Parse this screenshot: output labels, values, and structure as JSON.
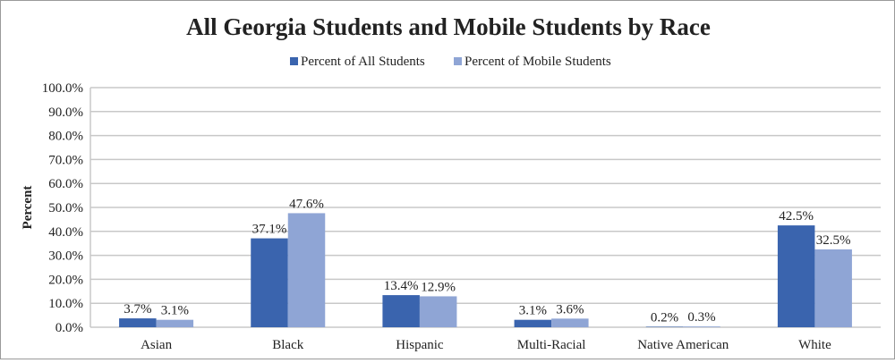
{
  "chart_data": {
    "type": "bar",
    "title": "All Georgia Students and Mobile Students by Race",
    "xlabel": "",
    "ylabel": "Percent",
    "ylim": [
      0,
      100
    ],
    "yticks": [
      "0.0%",
      "10.0%",
      "20.0%",
      "30.0%",
      "40.0%",
      "50.0%",
      "60.0%",
      "70.0%",
      "80.0%",
      "90.0%",
      "100.0%"
    ],
    "grid": true,
    "legend_position": "top",
    "categories": [
      "Asian",
      "Black",
      "Hispanic",
      "Multi-Racial",
      "Native American",
      "White"
    ],
    "series": [
      {
        "name": "Percent of All Students",
        "color": "#3A64AE",
        "values": [
          3.7,
          37.1,
          13.4,
          3.1,
          0.2,
          42.5
        ],
        "labels": [
          "3.7%",
          "37.1%",
          "13.4%",
          "3.1%",
          "0.2%",
          "42.5%"
        ]
      },
      {
        "name": "Percent of Mobile Students",
        "color": "#8FA5D5",
        "values": [
          3.1,
          47.6,
          12.9,
          3.6,
          0.3,
          32.5
        ],
        "labels": [
          "3.1%",
          "47.6%",
          "12.9%",
          "3.6%",
          "0.3%",
          "32.5%"
        ]
      }
    ]
  }
}
